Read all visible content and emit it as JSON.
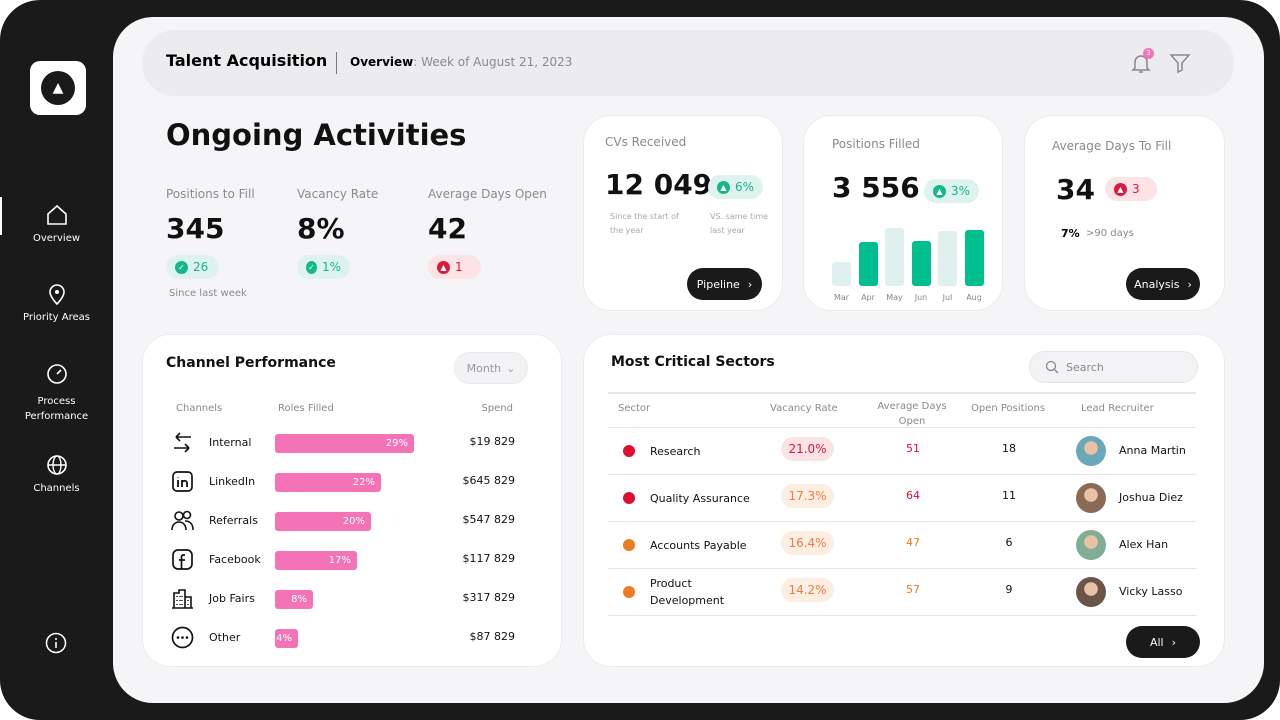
{
  "sidebar": {
    "items": [
      {
        "label": "Overview",
        "icon": "home-icon"
      },
      {
        "label": "Priority Areas",
        "icon": "location-pin-icon"
      },
      {
        "label": "Process Performance",
        "icon": "gauge-icon"
      },
      {
        "label": "Channels",
        "icon": "globe-icon"
      }
    ],
    "info_icon": "info-icon"
  },
  "header": {
    "title": "Talent Acquisition",
    "overview_label": "Overview",
    "week": ": Week of August 21, 2023",
    "notification_count": "3"
  },
  "activities": {
    "title": "Ongoing Activities",
    "stats": [
      {
        "label": "Positions to Fill",
        "value": "345",
        "delta": "26",
        "trend": "up"
      },
      {
        "label": "Vacancy  Rate",
        "value": "8%",
        "delta": "1%",
        "trend": "up"
      },
      {
        "label": "Average Days Open",
        "value": "42",
        "delta": "1",
        "trend": "up-bad"
      }
    ],
    "footnote": "Since last week"
  },
  "cvs": {
    "title": "CVs Received",
    "value": "12 049",
    "delta": "6%",
    "note1": "Since the start of the year",
    "note2": "VS. same time last year",
    "button": "Pipeline"
  },
  "filled": {
    "title": "Positions Filled",
    "value": "3 556",
    "delta": "3%",
    "chart_data": {
      "type": "bar",
      "categories": [
        "Mar",
        "Apr",
        "May",
        "Jun",
        "Jul",
        "Aug"
      ],
      "values": [
        0.42,
        0.75,
        1.0,
        0.77,
        0.95,
        0.96
      ],
      "highlighted": [
        false,
        true,
        false,
        true,
        false,
        true
      ]
    }
  },
  "days": {
    "title": "Average Days To Fill",
    "value": "34",
    "delta": "3",
    "pct": "7%",
    "pct_label": ">90 days",
    "button": "Analysis"
  },
  "channels": {
    "title": "Channel Performance",
    "filter": "Month",
    "headers": [
      "Channels",
      "Roles Filled",
      "Spend"
    ],
    "rows": [
      {
        "name": "Internal",
        "icon": "arrows-swap-icon",
        "pct": 29,
        "pct_label": "29%",
        "spend": "$19 829"
      },
      {
        "name": "LinkedIn",
        "icon": "linkedin-icon",
        "pct": 22,
        "pct_label": "22%",
        "spend": "$645 829"
      },
      {
        "name": "Referrals",
        "icon": "people-icon",
        "pct": 20,
        "pct_label": "20%",
        "spend": "$547 829"
      },
      {
        "name": "Facebook",
        "icon": "facebook-icon",
        "pct": 17,
        "pct_label": "17%",
        "spend": "$117 829"
      },
      {
        "name": "Job Fairs",
        "icon": "building-icon",
        "pct": 8,
        "pct_label": "8%",
        "spend": "$317 829"
      },
      {
        "name": "Other",
        "icon": "more-icon",
        "pct": 4,
        "pct_label": "4%",
        "spend": "$87 829"
      }
    ],
    "bar_color": "#f472b6"
  },
  "sectors": {
    "title": "Most Critical Sectors",
    "search_placeholder": "Search",
    "headers": [
      "Sector",
      "Vacancy Rate",
      "Average Days Open",
      "Open Positions",
      "Lead Recruiter"
    ],
    "rows": [
      {
        "sector": "Research",
        "rate": "21.0%",
        "days": "51",
        "open": "18",
        "recruiter": "Anna Martin",
        "color": "#dc0f33"
      },
      {
        "sector": "Quality Assurance",
        "rate": "17.3%",
        "days": "64",
        "open": "11",
        "recruiter": "Joshua Diez",
        "color": "#dc0f33"
      },
      {
        "sector": "Accounts Payable",
        "rate": "16.4%",
        "days": "47",
        "open": "6",
        "recruiter": "Alex Han",
        "color": "#ec7d1e"
      },
      {
        "sector": "Product Development",
        "rate": "14.2%",
        "days": "57",
        "open": "9",
        "recruiter": "Vicky Lasso",
        "color": "#ec7d1e"
      }
    ],
    "button": "All"
  }
}
